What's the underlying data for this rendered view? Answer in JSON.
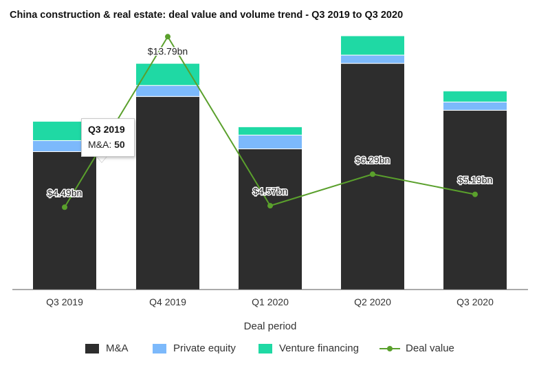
{
  "chart_data": {
    "type": "bar",
    "title": "China construction & real estate: deal value and volume trend - Q3 2019 to Q3 2020",
    "xlabel": "Deal period",
    "ylabel": "",
    "categories": [
      "Q3 2019",
      "Q4 2019",
      "Q1 2020",
      "Q2 2020",
      "Q3 2020"
    ],
    "stacked": true,
    "series": [
      {
        "name": "M&A",
        "values": [
          50,
          70,
          51,
          82,
          65
        ],
        "color": "#2d2d2d"
      },
      {
        "name": "Private equity",
        "values": [
          4,
          4,
          5,
          3,
          3
        ],
        "color": "#7cb9fb"
      },
      {
        "name": "Venture financing",
        "values": [
          7,
          8,
          3,
          7,
          4
        ],
        "color": "#1fd9a4"
      }
    ],
    "line_series": {
      "name": "Deal value",
      "values": [
        4.49,
        13.79,
        4.57,
        6.29,
        5.19
      ],
      "labels": [
        "$4.49bn",
        "$13.79bn",
        "$4.57bn",
        "$6.29bn",
        "$5.19bn"
      ],
      "color": "#5aa02c"
    },
    "ylim_bars": [
      0,
      95
    ],
    "ylim_line": [
      0,
      15
    ],
    "grid": false,
    "legend_position": "bottom",
    "tooltip": {
      "title": "Q3 2019",
      "label": "M&A:",
      "value": "50"
    }
  }
}
